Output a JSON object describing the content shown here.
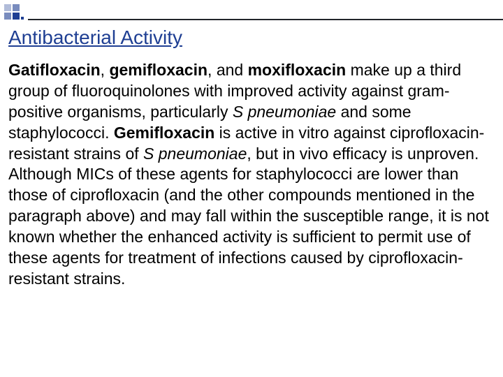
{
  "decor": {
    "accent_color": "#1f3f93",
    "rule_color": "#22242a"
  },
  "title": {
    "text": "Antibacterial Activity",
    "color": "#1f3f93",
    "fontsize": 28,
    "underline": true
  },
  "body": {
    "fontsize": 23,
    "color": "#000000",
    "segments": {
      "s0": "Gatifloxacin",
      "s1": ", ",
      "s2": "gemifloxacin",
      "s3": ", and ",
      "s4": "moxifloxacin",
      "s5": " make up a third group of fluoroquinolones with improved activity against gram-positive organisms, particularly ",
      "s6": "S pneumoniae",
      "s7": " and some staphylococci. ",
      "s8": "Gemifloxacin",
      "s9": " is active in vitro against ciprofloxacin-resistant strains of ",
      "s10": "S pneumoniae",
      "s11": ", but in vivo efficacy is unproven. Although MICs of these agents for staphylococci are lower than those of ciprofloxacin (and the other compounds mentioned in the paragraph above) and may fall within the susceptible range, it is not known whether the enhanced activity is sufficient to permit use of these agents for treatment of infections caused by ciprofloxacin-resistant strains."
    }
  }
}
